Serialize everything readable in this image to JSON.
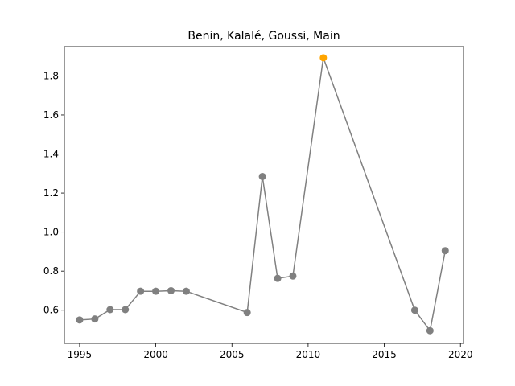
{
  "chart_data": {
    "type": "line",
    "title": "Benin, Kalalé, Goussi, Main",
    "xlabel": "",
    "ylabel": "",
    "xlim": [
      1994,
      2020.2
    ],
    "ylim": [
      0.43,
      1.95
    ],
    "x_ticks": [
      1995,
      2000,
      2005,
      2010,
      2015,
      2020
    ],
    "y_ticks": [
      0.6,
      0.8,
      1.0,
      1.2,
      1.4,
      1.6,
      1.8
    ],
    "x_tick_labels": [
      "1995",
      "2000",
      "2005",
      "2010",
      "2015",
      "2020"
    ],
    "y_tick_labels": [
      "0.6",
      "0.8",
      "1.0",
      "1.2",
      "1.4",
      "1.6",
      "1.8"
    ],
    "grid": false,
    "series": [
      {
        "x": [
          1995,
          1996,
          1997,
          1998,
          1999,
          2000,
          2001,
          2002,
          2006,
          2007,
          2008,
          2009,
          2011,
          2017,
          2018,
          2019
        ],
        "values": [
          0.55,
          0.555,
          0.603,
          0.603,
          0.697,
          0.697,
          0.7,
          0.697,
          0.588,
          1.285,
          0.763,
          0.775,
          1.893,
          0.6,
          0.495,
          0.905
        ],
        "color": "#808080"
      }
    ],
    "highlight": {
      "x": 2011,
      "value": 1.893,
      "color": "#FFA500"
    }
  }
}
